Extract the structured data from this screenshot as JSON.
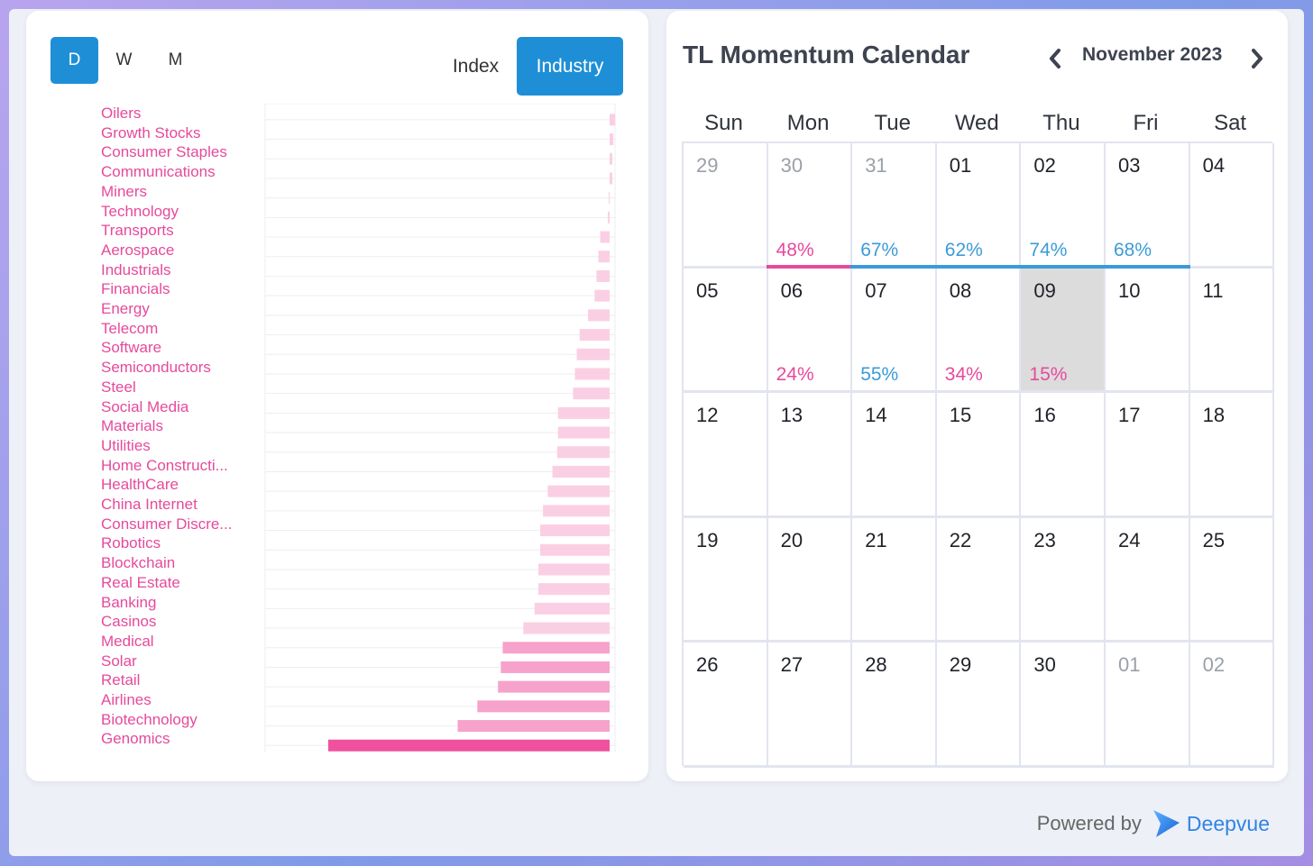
{
  "periods": [
    {
      "label": "D",
      "active": true
    },
    {
      "label": "W",
      "active": false
    },
    {
      "label": "M",
      "active": false
    }
  ],
  "modes": [
    {
      "label": "Index",
      "active": false
    },
    {
      "label": "Industry",
      "active": true
    }
  ],
  "colors": {
    "accent": "#1e8fd6",
    "label": "#e64a9b",
    "bar_strong": "#f0519f",
    "bar_mid": "#f6a2cb",
    "bar_light": "#fbcfe3",
    "positive": "#3b9bd9",
    "negative": "#e64a9b"
  },
  "chart_data": {
    "type": "bar",
    "orientation": "horizontal",
    "categories": [
      "Oilers",
      "Growth Stocks",
      "Consumer Staples",
      "Communications",
      "Miners",
      "Technology",
      "Transports",
      "Aerospace",
      "Industrials",
      "Financials",
      "Energy",
      "Telecom",
      "Software",
      "Semiconductors",
      "Steel",
      "Social Media",
      "Materials",
      "Utilities",
      "Home Constructi...",
      "HealthCare",
      "China Internet",
      "Consumer Discre...",
      "Robotics",
      "Blockchain",
      "Real Estate",
      "Banking",
      "Casinos",
      "Medical",
      "Solar",
      "Retail",
      "Airlines",
      "Biotechnology",
      "Genomics"
    ],
    "values": [
      0.6,
      0.4,
      0.3,
      0.3,
      -0.1,
      -0.2,
      -1.0,
      -1.2,
      -1.4,
      -1.6,
      -2.3,
      -3.2,
      -3.5,
      -3.7,
      -3.9,
      -5.5,
      -5.5,
      -5.6,
      -6.1,
      -6.6,
      -7.1,
      -7.4,
      -7.4,
      -7.6,
      -7.6,
      -8.0,
      -9.2,
      -11.4,
      -11.6,
      -11.9,
      -14.1,
      -16.2,
      -30.0
    ],
    "xlim": [
      -30,
      0.6
    ],
    "grid": true
  },
  "calendar": {
    "title": "TL Momentum Calendar",
    "month_label": "November 2023",
    "weekdays": [
      "Sun",
      "Mon",
      "Tue",
      "Wed",
      "Thu",
      "Fri",
      "Sat"
    ],
    "weeks": [
      [
        {
          "day": "29",
          "outside": true
        },
        {
          "day": "30",
          "outside": true,
          "pct": "48%",
          "sign": "negative"
        },
        {
          "day": "31",
          "outside": true,
          "pct": "67%",
          "sign": "positive"
        },
        {
          "day": "01",
          "pct": "62%",
          "sign": "positive"
        },
        {
          "day": "02",
          "pct": "74%",
          "sign": "positive"
        },
        {
          "day": "03",
          "pct": "68%",
          "sign": "positive"
        },
        {
          "day": "04"
        }
      ],
      [
        {
          "day": "05"
        },
        {
          "day": "06",
          "pct": "24%",
          "sign": "negative"
        },
        {
          "day": "07",
          "pct": "55%",
          "sign": "positive"
        },
        {
          "day": "08",
          "pct": "34%",
          "sign": "negative"
        },
        {
          "day": "09",
          "pct": "15%",
          "sign": "negative",
          "selected": true
        },
        {
          "day": "10"
        },
        {
          "day": "11"
        }
      ],
      [
        {
          "day": "12"
        },
        {
          "day": "13"
        },
        {
          "day": "14"
        },
        {
          "day": "15"
        },
        {
          "day": "16"
        },
        {
          "day": "17"
        },
        {
          "day": "18"
        }
      ],
      [
        {
          "day": "19"
        },
        {
          "day": "20"
        },
        {
          "day": "21"
        },
        {
          "day": "22"
        },
        {
          "day": "23"
        },
        {
          "day": "24"
        },
        {
          "day": "25"
        }
      ],
      [
        {
          "day": "26"
        },
        {
          "day": "27"
        },
        {
          "day": "28"
        },
        {
          "day": "29"
        },
        {
          "day": "30"
        },
        {
          "day": "01",
          "outside": true
        },
        {
          "day": "02",
          "outside": true
        }
      ]
    ]
  },
  "footer": {
    "powered_by": "Powered by",
    "brand": "Deepvue",
    "brand_icon": "deepvue-logo-icon"
  }
}
